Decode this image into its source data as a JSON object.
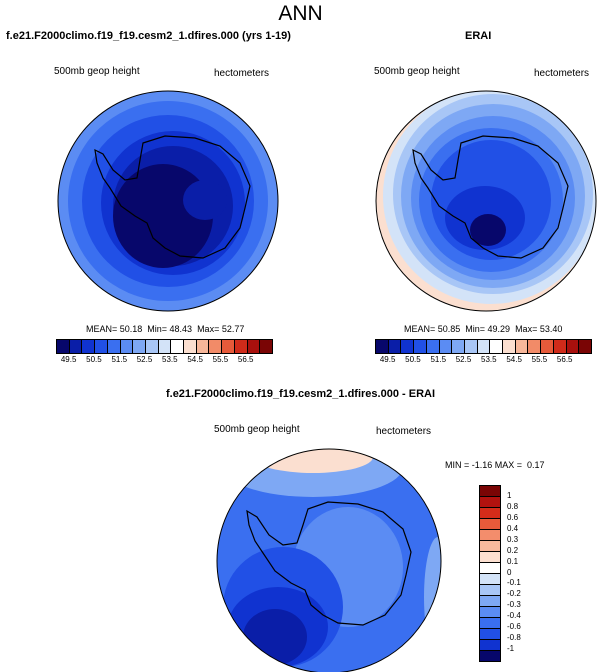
{
  "title": "ANN",
  "panels": {
    "left": {
      "title": "f.e21.F2000climo.f19_f19.cesm2_1.dfires.000 (yrs 1-19)",
      "variable": "500mb geop height",
      "units": "hectometers",
      "stats": "MEAN= 50.18  Min= 48.43  Max= 52.77"
    },
    "right": {
      "title": "ERAI",
      "variable": "500mb geop height",
      "units": "hectometers",
      "stats": "MEAN= 50.85  Min= 49.29  Max= 53.40"
    },
    "diff": {
      "title": "f.e21.F2000climo.f19_f19.cesm2_1.dfires.000 - ERAI",
      "variable": "500mb geop height",
      "units": "hectometers",
      "stats": "MIN = -1.16 MAX =  0.17"
    }
  },
  "colorbar_abs": {
    "labels": [
      "49.5",
      "50.5",
      "51.5",
      "52.5",
      "53.5",
      "54.5",
      "55.5",
      "56.5"
    ],
    "colors": [
      "#07076b",
      "#0a1ea8",
      "#1033d0",
      "#2150e6",
      "#3a6ff0",
      "#5b8cf3",
      "#7ea8f4",
      "#a8c6f6",
      "#d3e3f8",
      "#ffffff",
      "#fbdfd0",
      "#f7b79a",
      "#f28b68",
      "#e65a3a",
      "#cf2b1a",
      "#a8100d",
      "#7a0505"
    ]
  },
  "colorbar_diff": {
    "labels": [
      "1",
      "0.8",
      "0.6",
      "0.4",
      "0.3",
      "0.2",
      "0.1",
      "0",
      "-0.1",
      "-0.2",
      "-0.3",
      "-0.4",
      "-0.6",
      "-0.8",
      "-1"
    ],
    "colors": [
      "#7a0505",
      "#b2120f",
      "#d42c1a",
      "#e85a3a",
      "#f38d6c",
      "#f7b99d",
      "#fce0d1",
      "#ffffff",
      "#d3e3f8",
      "#a8c6f6",
      "#7ea8f4",
      "#5b8cf3",
      "#3a6ff0",
      "#2150e6",
      "#1033d0",
      "#07076b"
    ]
  }
}
